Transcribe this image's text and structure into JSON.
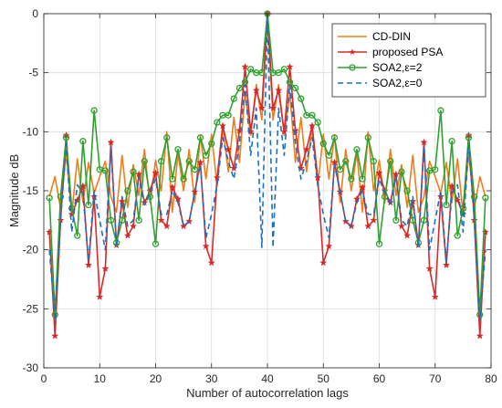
{
  "chart_data": {
    "type": "line",
    "title": "",
    "xlabel": "Number of autocorrelation lags",
    "ylabel": "Magnitude dB",
    "xlim": [
      0,
      80
    ],
    "ylim": [
      -30,
      0
    ],
    "xticks": [
      0,
      10,
      20,
      30,
      40,
      50,
      60,
      70,
      80
    ],
    "yticks": [
      0,
      -5,
      -10,
      -15,
      -20,
      -25,
      -30
    ],
    "grid": true,
    "legend_position": "top-right",
    "series": [
      {
        "name": "CD-DIN",
        "color": "#ee7d1b",
        "style": "solid",
        "marker": "none",
        "x": [
          1,
          2,
          3,
          4,
          5,
          6,
          7,
          8,
          9,
          10,
          11,
          12,
          13,
          14,
          15,
          16,
          17,
          18,
          19,
          20,
          21,
          22,
          23,
          24,
          25,
          26,
          27,
          28,
          29,
          30,
          31,
          32,
          33,
          34,
          35,
          36,
          37,
          38,
          39,
          40,
          41,
          42,
          43,
          44,
          45,
          46,
          47,
          48,
          49,
          50,
          51,
          52,
          53,
          54,
          55,
          56,
          57,
          58,
          59,
          60,
          61,
          62,
          63,
          64,
          65,
          66,
          67,
          68,
          69,
          70,
          71,
          72,
          73,
          74,
          75,
          76,
          77,
          78,
          79
        ],
        "y": [
          -15.5,
          -13.8,
          -16.5,
          -11.8,
          -17.0,
          -12.3,
          -16.0,
          -12.6,
          -15.2,
          -13.8,
          -12.5,
          -15.5,
          -16.8,
          -12.0,
          -16.4,
          -12.8,
          -15.4,
          -11.5,
          -16.0,
          -12.4,
          -15.0,
          -10.0,
          -16.8,
          -11.8,
          -15.0,
          -11.5,
          -16.0,
          -10.3,
          -14.0,
          -10.2,
          -14.6,
          -9.6,
          -13.4,
          -8.8,
          -12.6,
          -6.7,
          -10.3,
          -6.0,
          -9.0,
          0,
          -9.0,
          -6.0,
          -10.3,
          -6.7,
          -12.6,
          -8.8,
          -13.4,
          -9.6,
          -14.6,
          -10.2,
          -14.0,
          -10.3,
          -16.0,
          -11.5,
          -15.0,
          -11.8,
          -16.8,
          -10.0,
          -15.0,
          -12.4,
          -16.0,
          -11.5,
          -15.4,
          -12.8,
          -16.4,
          -12.0,
          -16.8,
          -15.5,
          -12.5,
          -13.8,
          -15.2,
          -12.6,
          -16.0,
          -12.3,
          -17.0,
          -11.8,
          -16.5,
          -13.8,
          -15.5
        ]
      },
      {
        "name": "proposed PSA",
        "color": "#d62a2a",
        "style": "solid",
        "marker": "star",
        "x": [
          1,
          2,
          3,
          4,
          5,
          6,
          7,
          8,
          9,
          10,
          11,
          12,
          13,
          14,
          15,
          16,
          17,
          18,
          19,
          20,
          21,
          22,
          23,
          24,
          25,
          26,
          27,
          28,
          29,
          30,
          31,
          32,
          33,
          34,
          35,
          36,
          37,
          38,
          39,
          40,
          41,
          42,
          43,
          44,
          45,
          46,
          47,
          48,
          49,
          50,
          51,
          52,
          53,
          54,
          55,
          56,
          57,
          58,
          59,
          60,
          61,
          62,
          63,
          64,
          65,
          66,
          67,
          68,
          69,
          70,
          71,
          72,
          73,
          74,
          75,
          76,
          77,
          78,
          79
        ],
        "y": [
          -18.5,
          -27.3,
          -17.5,
          -10.3,
          -17.0,
          -15.8,
          -14.6,
          -21.3,
          -15.5,
          -24.0,
          -21.6,
          -10.9,
          -19.6,
          -15.9,
          -18.8,
          -18.0,
          -13.6,
          -16.0,
          -15.0,
          -13.5,
          -17.5,
          -18.0,
          -14.7,
          -15.7,
          -18.0,
          -17.6,
          -15.1,
          -12.6,
          -19.7,
          -21.1,
          -13.9,
          -9.5,
          -11.5,
          -13.1,
          -9.9,
          -4.5,
          -10.0,
          -6.5,
          -8.0,
          0,
          -8.0,
          -6.5,
          -10.0,
          -4.5,
          -9.9,
          -13.1,
          -11.5,
          -9.5,
          -13.9,
          -21.1,
          -19.7,
          -12.6,
          -15.1,
          -17.6,
          -18.0,
          -15.7,
          -14.7,
          -18.0,
          -17.5,
          -13.5,
          -15.0,
          -16.0,
          -13.6,
          -18.0,
          -18.8,
          -15.9,
          -19.6,
          -10.9,
          -21.6,
          -24.0,
          -15.5,
          -21.3,
          -14.6,
          -15.8,
          -17.0,
          -10.3,
          -17.5,
          -27.3,
          -18.5
        ]
      },
      {
        "name": "SOA2,ε=2",
        "color": "#2ea12e",
        "style": "solid",
        "marker": "circle",
        "x": [
          1,
          2,
          3,
          4,
          5,
          6,
          7,
          8,
          9,
          10,
          11,
          12,
          13,
          14,
          15,
          16,
          17,
          18,
          19,
          20,
          21,
          22,
          23,
          24,
          25,
          26,
          27,
          28,
          29,
          30,
          31,
          32,
          33,
          34,
          35,
          36,
          37,
          38,
          39,
          40,
          41,
          42,
          43,
          44,
          45,
          46,
          47,
          48,
          49,
          50,
          51,
          52,
          53,
          54,
          55,
          56,
          57,
          58,
          59,
          60,
          61,
          62,
          63,
          64,
          65,
          66,
          67,
          68,
          69,
          70,
          71,
          72,
          73,
          74,
          75,
          76,
          77,
          78,
          79
        ],
        "y": [
          -15.6,
          -25.5,
          -15.5,
          -10.5,
          -16.5,
          -18.8,
          -10.8,
          -16.2,
          -8.2,
          -13.2,
          -13.3,
          -17.5,
          -19.4,
          -17.5,
          -15.0,
          -13.4,
          -17.5,
          -12.5,
          -15.5,
          -19.5,
          -12.5,
          -10.5,
          -14.0,
          -11.5,
          -14.0,
          -12.5,
          -13.2,
          -10.5,
          -12.0,
          -11.0,
          -9.2,
          -8.6,
          -8.6,
          -7.2,
          -6.3,
          -5.8,
          -4.7,
          -5.0,
          -5.0,
          0,
          -5.0,
          -5.0,
          -4.7,
          -5.8,
          -6.3,
          -7.2,
          -8.6,
          -8.6,
          -9.2,
          -11.0,
          -12.0,
          -10.5,
          -13.2,
          -12.5,
          -14.0,
          -11.5,
          -14.0,
          -10.5,
          -12.5,
          -19.5,
          -15.5,
          -12.5,
          -17.5,
          -13.4,
          -15.0,
          -17.5,
          -19.4,
          -17.5,
          -13.3,
          -13.2,
          -8.2,
          -16.2,
          -10.8,
          -18.8,
          -16.5,
          -10.5,
          -15.5,
          -25.5,
          -15.6
        ]
      },
      {
        "name": "SOA2,ε=0",
        "color": "#1f6fc0",
        "style": "dashed",
        "marker": "none",
        "x": [
          1,
          2,
          3,
          4,
          5,
          6,
          7,
          8,
          9,
          10,
          11,
          12,
          13,
          14,
          15,
          16,
          17,
          18,
          19,
          20,
          21,
          22,
          23,
          24,
          25,
          26,
          27,
          28,
          29,
          30,
          31,
          32,
          33,
          34,
          35,
          36,
          37,
          38,
          39,
          40,
          41,
          42,
          43,
          44,
          45,
          46,
          47,
          48,
          49,
          50,
          51,
          52,
          53,
          54,
          55,
          56,
          57,
          58,
          59,
          60,
          61,
          62,
          63,
          64,
          65,
          66,
          67,
          68,
          69,
          70,
          71,
          72,
          73,
          74,
          75,
          76,
          77,
          78,
          79
        ],
        "y": [
          -20.0,
          -26.0,
          -17.5,
          -11.0,
          -18.5,
          -14.5,
          -15.2,
          -21.0,
          -15.0,
          -17.5,
          -20.0,
          -11.2,
          -19.8,
          -15.5,
          -18.0,
          -17.5,
          -13.8,
          -16.2,
          -15.2,
          -14.0,
          -17.0,
          -17.0,
          -15.0,
          -16.0,
          -18.0,
          -17.6,
          -15.1,
          -12.8,
          -19.0,
          -17.0,
          -14.5,
          -10.5,
          -12.5,
          -14.0,
          -11.0,
          -6.0,
          -12.0,
          -8.0,
          -19.8,
          0,
          -19.8,
          -8.0,
          -12.0,
          -6.0,
          -11.0,
          -14.0,
          -12.5,
          -10.5,
          -14.5,
          -17.0,
          -19.0,
          -12.8,
          -15.1,
          -17.6,
          -18.0,
          -16.0,
          -15.0,
          -17.0,
          -17.0,
          -14.0,
          -15.2,
          -16.2,
          -13.8,
          -17.5,
          -18.0,
          -15.5,
          -19.8,
          -11.2,
          -20.0,
          -17.5,
          -15.0,
          -21.0,
          -15.2,
          -14.5,
          -18.5,
          -11.0,
          -17.5,
          -26.0,
          -20.0
        ]
      }
    ]
  }
}
